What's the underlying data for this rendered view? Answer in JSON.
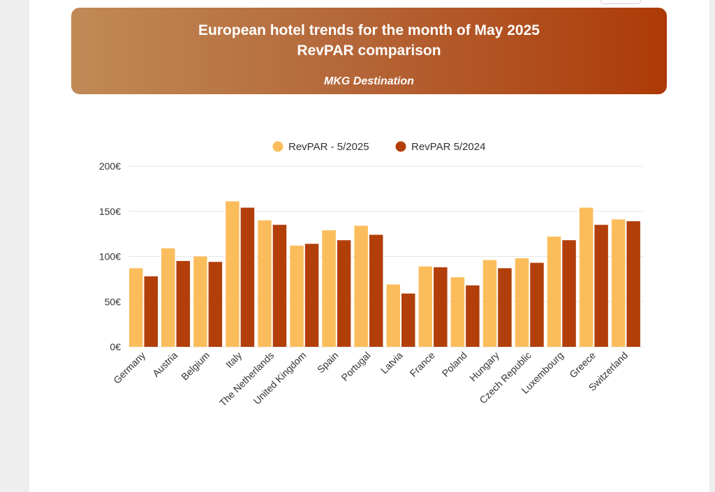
{
  "header": {
    "title_line1": "European hotel trends for the month of May 2025",
    "title_line2": "RevPAR comparison",
    "source": "MKG Destination"
  },
  "colors": {
    "series_2025": "#fbbd5c",
    "series_2024": "#b23f0a"
  },
  "chart_data": {
    "type": "bar",
    "categories": [
      "Germany",
      "Austria",
      "Belgium",
      "Italy",
      "The Netherlands",
      "United Kingdom",
      "Spain",
      "Portugal",
      "Latvia",
      "France",
      "Poland",
      "Hungary",
      "Czech Republic",
      "Luxembourg",
      "Greece",
      "Switzerland"
    ],
    "series": [
      {
        "name": "RevPAR - 5/2025",
        "values": [
          87,
          109,
          100,
          161,
          140,
          112,
          129,
          134,
          69,
          89,
          77,
          96,
          98,
          122,
          154,
          141
        ]
      },
      {
        "name": "RevPAR 5/2024",
        "values": [
          78,
          95,
          94,
          154,
          135,
          114,
          118,
          124,
          59,
          88,
          68,
          87,
          93,
          118,
          135,
          139
        ]
      }
    ],
    "yticks": [
      "0€",
      "50€",
      "100€",
      "150€",
      "200€"
    ],
    "ylim": [
      0,
      200
    ],
    "grid": true,
    "legend_position": "top"
  }
}
